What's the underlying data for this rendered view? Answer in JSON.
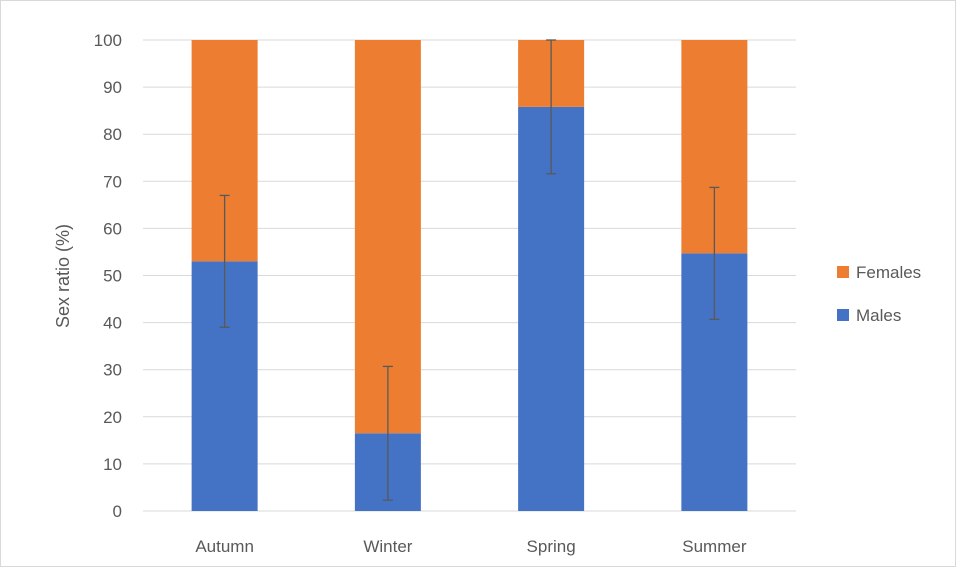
{
  "chart_data": {
    "type": "bar",
    "stacked": true,
    "categories": [
      "Autumn",
      "Winter",
      "Spring",
      "Summer"
    ],
    "series": [
      {
        "name": "Males",
        "color": "#4472c4",
        "values": [
          53,
          16.5,
          85.8,
          54.7
        ],
        "error": [
          14,
          14.2,
          14.2,
          14
        ]
      },
      {
        "name": "Females",
        "color": "#ed7d31",
        "values": [
          47,
          83.5,
          14.2,
          45.3
        ]
      }
    ],
    "title": "",
    "xlabel": "",
    "ylabel": "Sex ratio (%)",
    "ylim": [
      0,
      100
    ],
    "yticks": [
      "0",
      "10",
      "20",
      "30",
      "40",
      "50",
      "60",
      "70",
      "80",
      "90",
      "100"
    ],
    "grid": true,
    "legend_position": "right",
    "legend_order": [
      "Females",
      "Males"
    ]
  }
}
